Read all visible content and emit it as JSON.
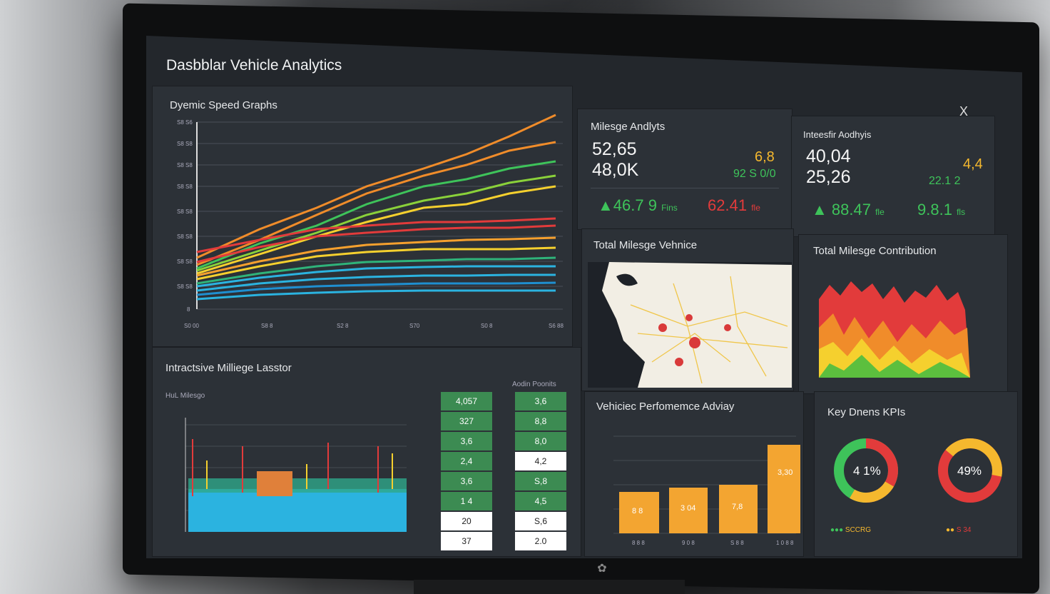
{
  "window": {
    "title": "Dasbblar Vehicle Analytics",
    "close_glyph": "X"
  },
  "speed": {
    "title": "Dyemic Speed Graphs",
    "y_ticks": [
      "S8 S6",
      "S8 S8",
      "S8 S8",
      "S8 S8",
      "S8 S8",
      "S8 S8",
      "S8 S8",
      "S8 S8",
      "8"
    ],
    "x_ticks": [
      "S0 00",
      "S8 8",
      "S2 8",
      "S70",
      "S0 8",
      "S6 88"
    ]
  },
  "mileage": {
    "title": "Milesge Andlyts",
    "big1": "52,65",
    "big2": "48,0K",
    "side1": "6,8",
    "side2": "92 S  0/0",
    "k1_val": "46.7 9",
    "k1_unit": "Fins",
    "k2_val": "62.41",
    "k2_unit": "fle"
  },
  "insights": {
    "title": "Inteesfir Aodhyis",
    "big1": "40,04",
    "big2": "25,26",
    "side1": "4,4",
    "side2": "22.1 2",
    "k1_val": "88.47",
    "k1_unit": "fle",
    "k2_val": "9.8.1",
    "k2_unit": "fls"
  },
  "map": {
    "title": "Total Milesge Vehnice"
  },
  "contrib": {
    "title": "Total Milesge Contribution"
  },
  "locator": {
    "title": "Intractsive Milliege Lasstor",
    "subtitle": "HuL Milesgo",
    "tiles_header": "Aodin Poonits",
    "col1": [
      "4,057",
      "327",
      "3,6",
      "2,4",
      "3,6",
      "1 4",
      "20",
      "37"
    ],
    "col2": [
      "3,6",
      "8,8",
      "8,0",
      "4,2",
      "S,8",
      "4,5",
      "S,6",
      "2.0"
    ],
    "col1_kinds": [
      "g",
      "g",
      "g",
      "g",
      "g",
      "g",
      "w",
      "w"
    ],
    "col2_kinds": [
      "g",
      "g",
      "g",
      "w",
      "g",
      "g",
      "w",
      "w"
    ]
  },
  "performance": {
    "title": "Vehiciec Perfomemce Adviay",
    "bar_labels": [
      "8 8",
      "3 04",
      "7,8",
      "3,30"
    ],
    "x_labels": [
      "8 8 8",
      "9 0 8",
      "S 8 8",
      "1 0 8 8"
    ]
  },
  "kpis": {
    "title": "Key Dnens KPIs",
    "donut1": "4 1%",
    "donut2": "49%",
    "legend1": "SCCRG",
    "legend2": "S 34"
  },
  "colors": {
    "green": "#3ec35a",
    "red": "#e23b3b",
    "yellow": "#f5b82e",
    "orange": "#f0a030",
    "blue": "#2bb3e0"
  }
}
